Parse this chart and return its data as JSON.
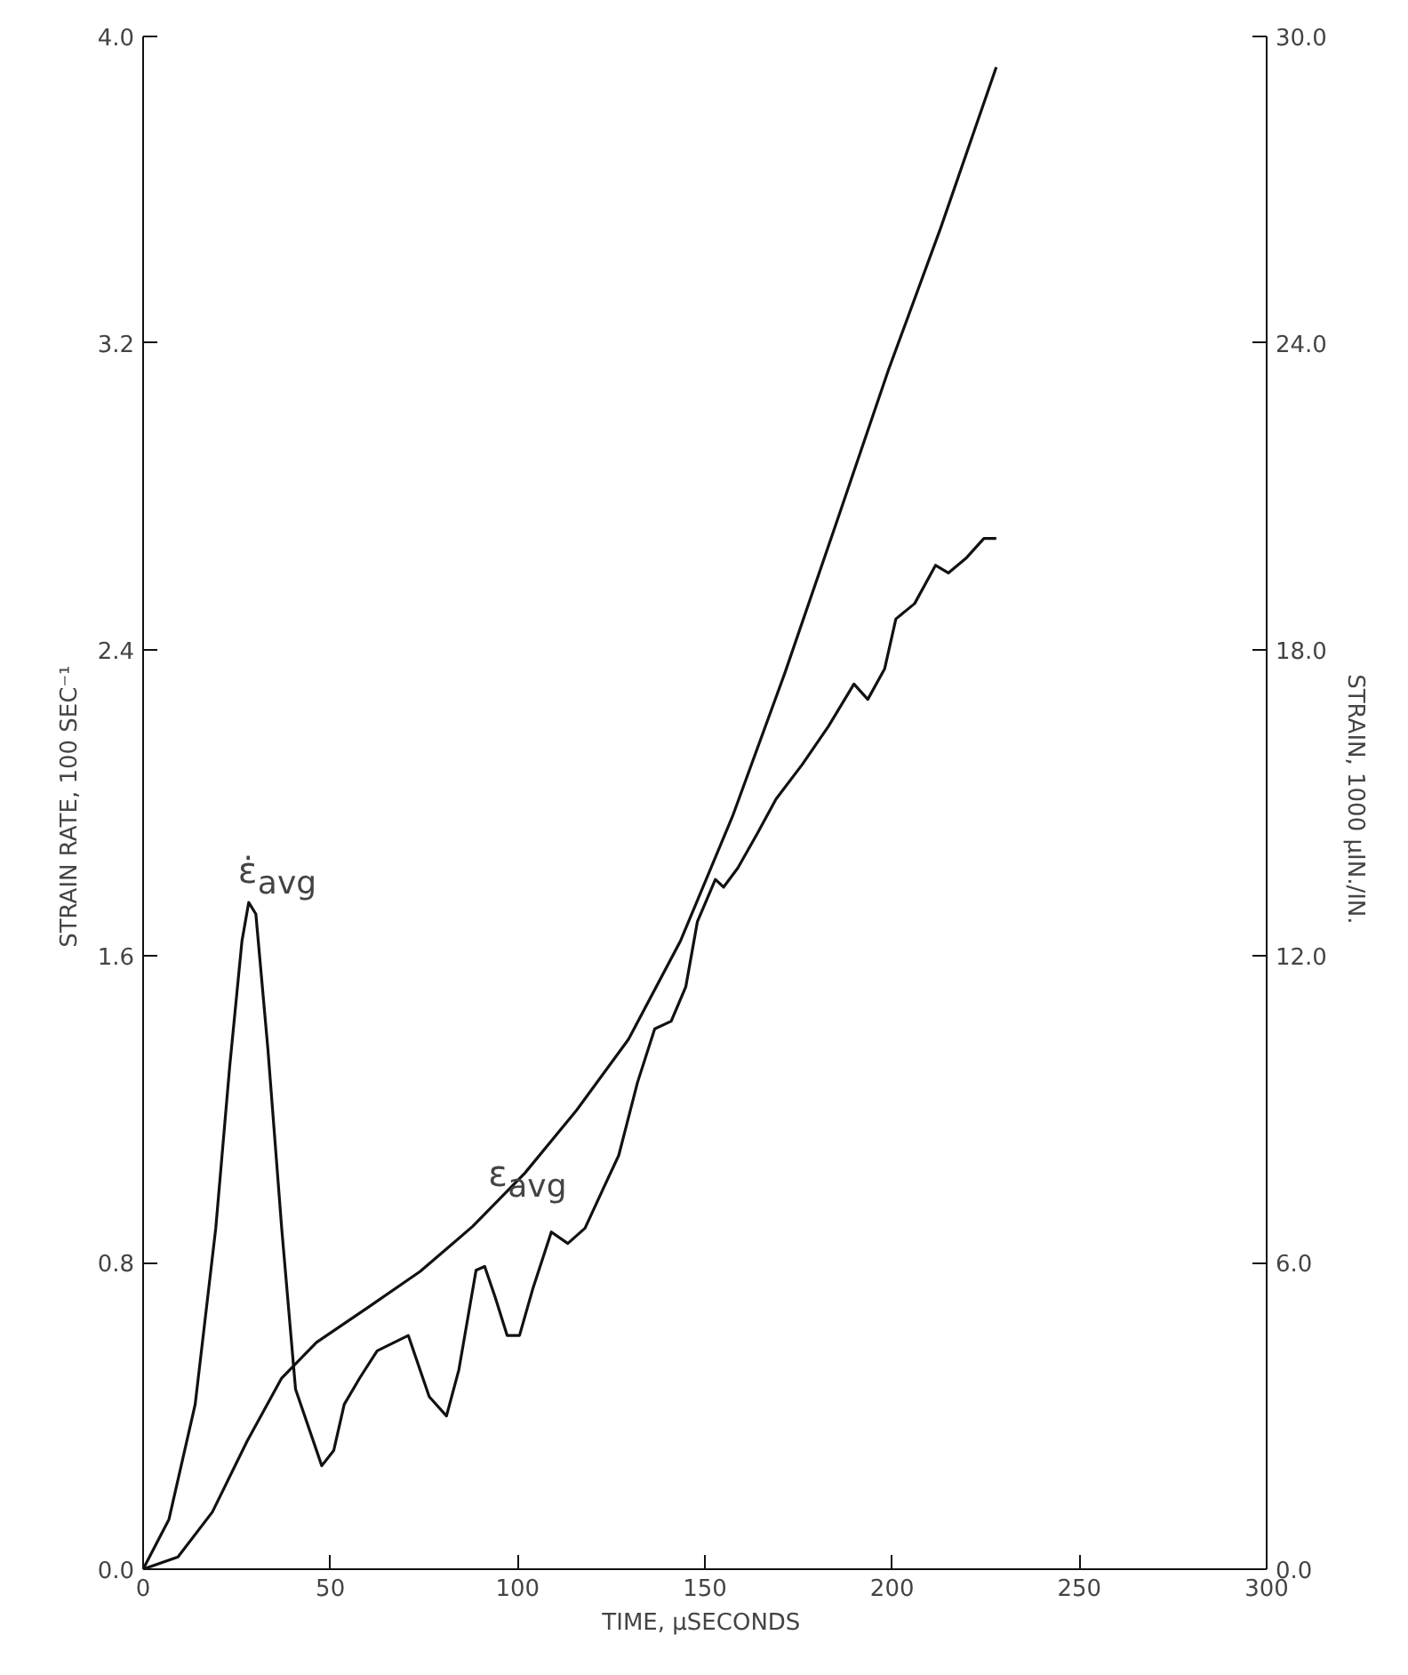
{
  "chart_data": {
    "type": "line",
    "xlabel": "TIME,  μSECONDS",
    "ylabel": "STRAIN RATE,  100 SEC⁻¹",
    "y2label": "STRAIN,  1000 μIN./IN.",
    "xlim": [
      0,
      300
    ],
    "xticks": [
      0,
      50,
      100,
      150,
      200,
      250,
      300
    ],
    "ylim": [
      0,
      4.0
    ],
    "yticks": [
      {
        "value": 0,
        "label": "0.0"
      },
      0.8,
      1.6,
      2.4,
      3.2,
      {
        "value": 4,
        "label": "4.0"
      }
    ],
    "y2lim": [
      0,
      30.0
    ],
    "y2ticks": [
      {
        "value": 0,
        "label": "0.0"
      },
      {
        "value": 6,
        "label": "6.0"
      },
      {
        "value": 12,
        "label": "12.0"
      },
      {
        "value": 18,
        "label": "18.0"
      },
      {
        "value": 24,
        "label": "24.0"
      },
      {
        "value": 30,
        "label": "30.0"
      }
    ],
    "grid": false,
    "marker": "none",
    "line_style": "solid",
    "series": [
      {
        "color": "#111111",
        "x": [
          0,
          6.9,
          13.9,
          19.4,
          23.1,
          26.4,
          28.2,
          30.1,
          33.3,
          37,
          40.7,
          47.7,
          50.9,
          53.7,
          57.9,
          62.5,
          70.8,
          76.4,
          81,
          84.3,
          88.9,
          91.2,
          94,
          97.2,
          100.5,
          104,
          109,
          113.4,
          118,
          122.7,
          127,
          132,
          136.6,
          141,
          144.9,
          148,
          152.8,
          155,
          158.8,
          164,
          169,
          176,
          183,
          189.8,
          193.5,
          198,
          201,
          206,
          211.6,
          215,
          219.9,
          224.5,
          227.8
        ],
        "values": [
          0,
          0.13,
          0.43,
          0.89,
          1.31,
          1.64,
          1.74,
          1.71,
          1.36,
          0.89,
          0.47,
          0.27,
          0.31,
          0.43,
          0.5,
          0.57,
          0.61,
          0.45,
          0.4,
          0.52,
          0.78,
          0.79,
          0.71,
          0.61,
          0.61,
          0.73,
          0.88,
          0.85,
          0.89,
          0.99,
          1.08,
          1.27,
          1.41,
          1.43,
          1.52,
          1.69,
          1.8,
          1.78,
          1.83,
          1.92,
          2.01,
          2.1,
          2.2,
          2.31,
          2.27,
          2.35,
          2.48,
          2.52,
          2.62,
          2.6,
          2.64,
          2.69,
          2.69
        ]
      },
      {
        "color": "#111111",
        "axis": "y2",
        "x": [
          0,
          9.3,
          18.5,
          27.8,
          37,
          46.3,
          60.2,
          74,
          88,
          101.9,
          115.7,
          129.6,
          143.5,
          157.4,
          171.3,
          185.2,
          199,
          213,
          224.5,
          227.8
        ],
        "values": [
          0,
          0.24,
          1.12,
          2.51,
          3.74,
          4.44,
          5.13,
          5.83,
          6.71,
          7.75,
          8.98,
          10.37,
          12.3,
          14.74,
          17.53,
          20.5,
          23.47,
          26.26,
          28.7,
          29.4
        ]
      }
    ],
    "annotations": [
      {
        "text": "ε̇$_{avg}$",
        "x": 28.2,
        "y": 1.74
      },
      {
        "text": "ε$_{avg}$",
        "x": 95,
        "y": 0.95
      }
    ]
  }
}
